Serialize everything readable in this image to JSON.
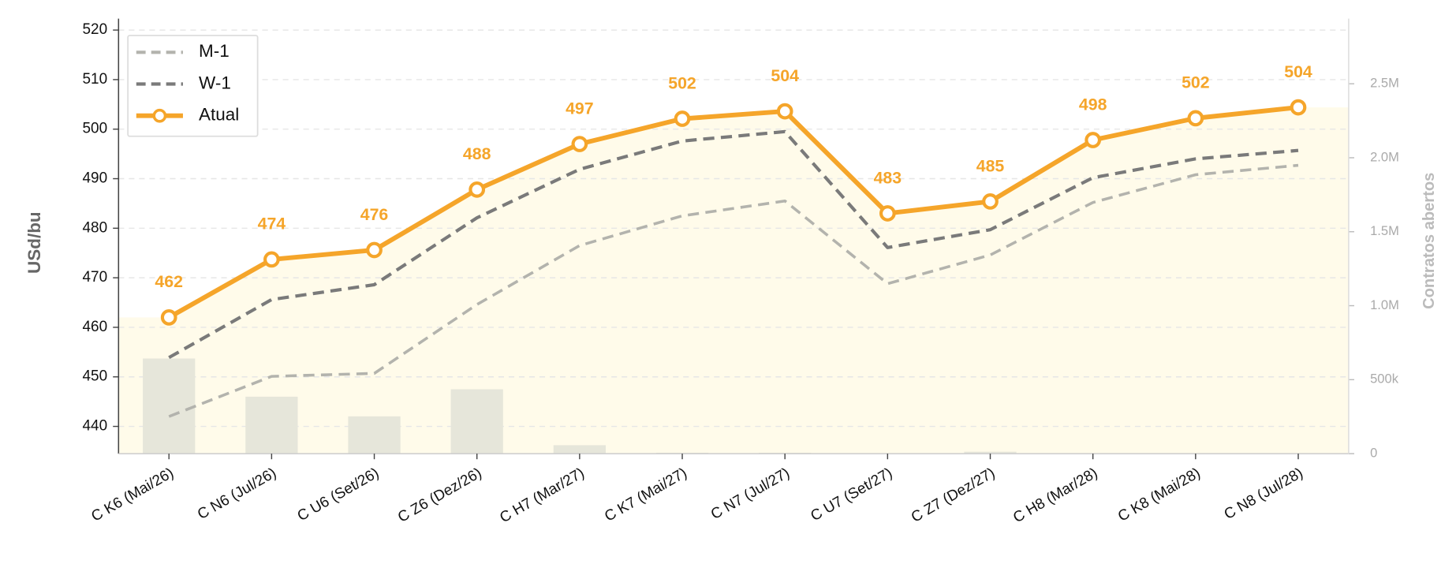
{
  "chart_data": {
    "type": "line",
    "categories": [
      "C K6 (Mai/26)",
      "C N6 (Jul/26)",
      "C U6 (Set/26)",
      "C Z6 (Dez/26)",
      "C H7 (Mar/27)",
      "C K7 (Mai/27)",
      "C N7 (Jul/27)",
      "C U7 (Set/27)",
      "C Z7 (Dez/27)",
      "C H8 (Mar/28)",
      "C K8 (Mai/28)",
      "C N8 (Jul/28)"
    ],
    "series": [
      {
        "name": "M-1",
        "color": "#b3b3ad",
        "style": "dashed",
        "values": [
          442.0,
          450.1,
          450.7,
          464.6,
          476.5,
          482.5,
          485.5,
          468.8,
          474.6,
          485.2,
          490.8,
          492.7
        ]
      },
      {
        "name": "W-1",
        "color": "#7a7a7a",
        "style": "dashed",
        "values": [
          453.9,
          465.6,
          468.6,
          482.1,
          491.9,
          497.6,
          499.5,
          476.1,
          479.7,
          490.2,
          494.0,
          495.7
        ]
      },
      {
        "name": "Atual",
        "color": "#f5a52a",
        "style": "solid",
        "values": [
          462.0,
          473.7,
          475.6,
          487.8,
          497.0,
          502.1,
          503.6,
          483.0,
          485.4,
          497.8,
          502.2,
          504.4
        ],
        "value_labels": [
          "462",
          "474",
          "476",
          "488",
          "497",
          "502",
          "504",
          "483",
          "485",
          "498",
          "502",
          "504"
        ]
      }
    ],
    "open_interest": {
      "axis": "y2",
      "color": "#e6e6da",
      "values": [
        643000,
        385000,
        252000,
        435000,
        57000,
        6000,
        6000,
        2000,
        13000,
        0,
        0,
        0
      ]
    },
    "ylabel": "USd/bu",
    "y2label": "Contratos abertos",
    "ylim": [
      434.5,
      522.3
    ],
    "yticks": [
      440,
      450,
      460,
      470,
      480,
      490,
      500,
      510,
      520
    ],
    "y2lim": [
      0,
      2940000
    ],
    "y2ticks": [
      0,
      {
        "value": 500000,
        "label": "500k"
      },
      {
        "value": 1000000,
        "label": "1.0M"
      },
      {
        "value": 1500000,
        "label": "1.5M"
      },
      {
        "value": 2000000,
        "label": "2.0M"
      },
      {
        "value": 2500000,
        "label": "2.5M"
      }
    ],
    "grid": true,
    "legend": "upper left"
  }
}
